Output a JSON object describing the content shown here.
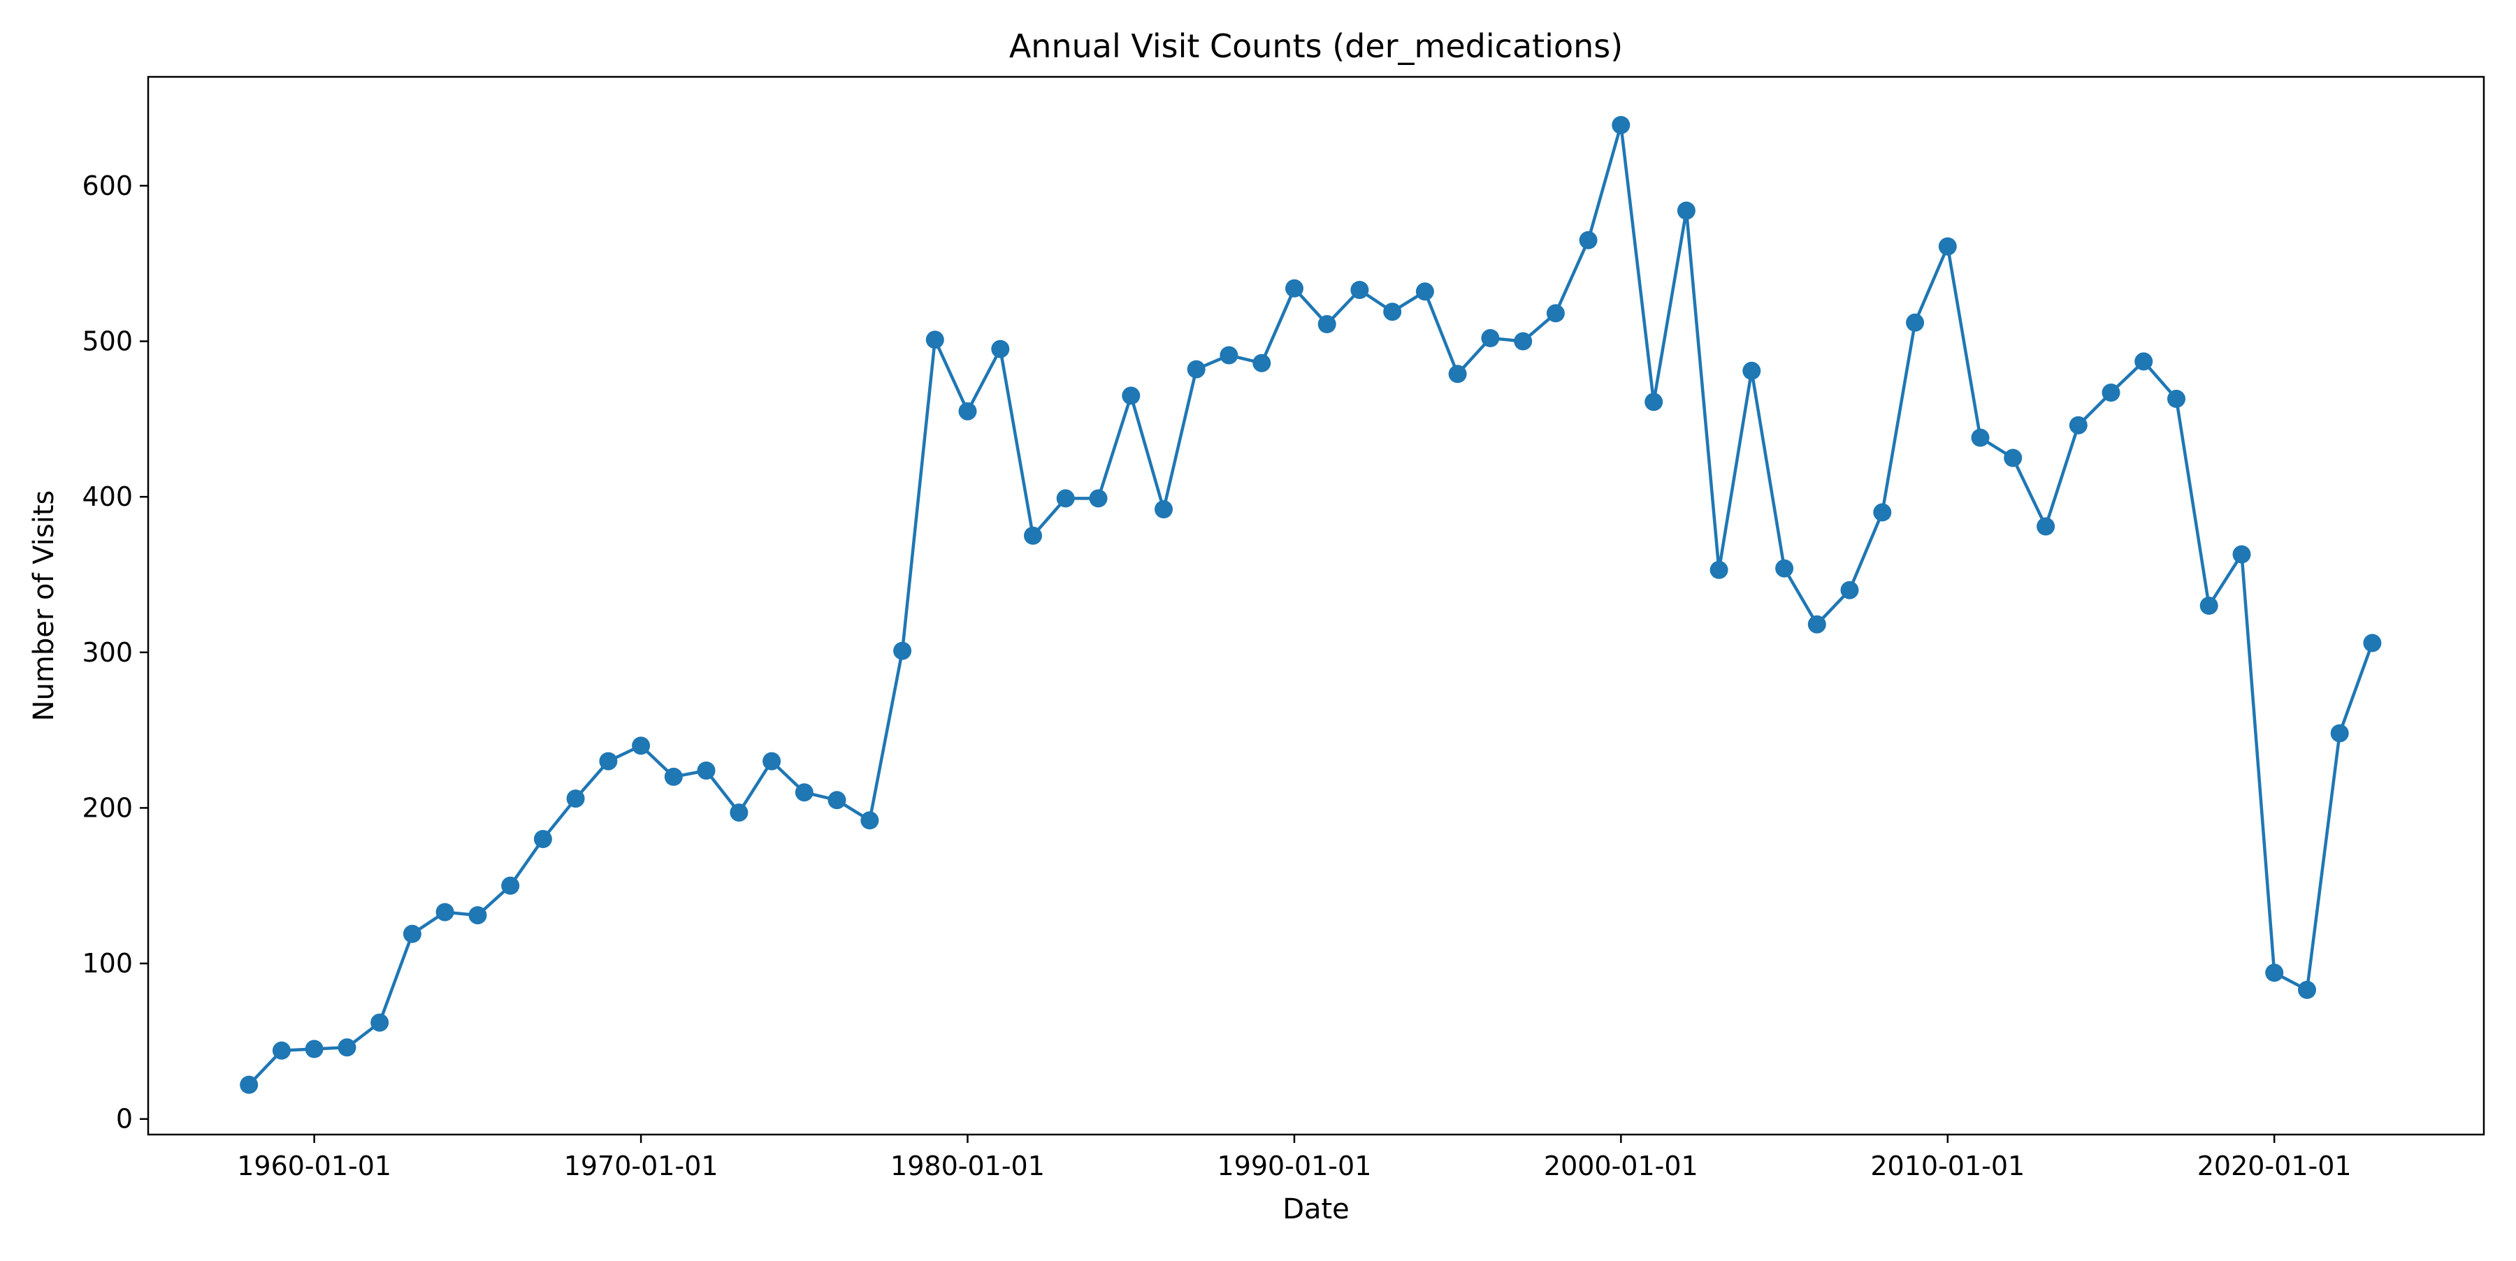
{
  "chart_data": {
    "type": "line",
    "title": "Annual Visit Counts (der_medications)",
    "xlabel": "Date",
    "ylabel": "Number of Visits",
    "x_tick_labels": [
      "1960-01-01",
      "1970-01-01",
      "1980-01-01",
      "1990-01-01",
      "2000-01-01",
      "2010-01-01",
      "2020-01-01"
    ],
    "y_tick_labels": [
      "0",
      "100",
      "200",
      "300",
      "400",
      "500",
      "600"
    ],
    "xlim": [
      "1954-12-01",
      "2026-06-01"
    ],
    "ylim": [
      -10,
      670
    ],
    "grid": false,
    "marker": "circle",
    "color": "#1f77b4",
    "series": [
      {
        "x": [
          "1958-01-01",
          "1959-01-01",
          "1960-01-01",
          "1961-01-01",
          "1962-01-01",
          "1963-01-01",
          "1964-01-01",
          "1965-01-01",
          "1966-01-01",
          "1967-01-01",
          "1968-01-01",
          "1969-01-01",
          "1970-01-01",
          "1971-01-01",
          "1972-01-01",
          "1973-01-01",
          "1974-01-01",
          "1975-01-01",
          "1976-01-01",
          "1977-01-01",
          "1978-01-01",
          "1979-01-01",
          "1980-01-01",
          "1981-01-01",
          "1982-01-01",
          "1983-01-01",
          "1984-01-01",
          "1985-01-01",
          "1986-01-01",
          "1987-01-01",
          "1988-01-01",
          "1989-01-01",
          "1990-01-01",
          "1991-01-01",
          "1992-01-01",
          "1993-01-01",
          "1994-01-01",
          "1995-01-01",
          "1996-01-01",
          "1997-01-01",
          "1998-01-01",
          "1999-01-01",
          "2000-01-01",
          "2001-01-01",
          "2002-01-01",
          "2003-01-01",
          "2004-01-01",
          "2005-01-01",
          "2006-01-01",
          "2007-01-01",
          "2008-01-01",
          "2009-01-01",
          "2010-01-01",
          "2011-01-01",
          "2012-01-01",
          "2013-01-01",
          "2014-01-01",
          "2015-01-01",
          "2016-01-01",
          "2017-01-01",
          "2018-01-01",
          "2019-01-01",
          "2020-01-01",
          "2021-01-01",
          "2022-01-01",
          "2023-01-01"
        ],
        "values": [
          22,
          44,
          45,
          46,
          62,
          119,
          133,
          131,
          150,
          180,
          206,
          230,
          240,
          220,
          224,
          197,
          230,
          210,
          205,
          192,
          301,
          501,
          455,
          495,
          375,
          399,
          399,
          465,
          392,
          482,
          491,
          486,
          534,
          511,
          533,
          519,
          532,
          479,
          502,
          500,
          518,
          565,
          639,
          461,
          584,
          353,
          481,
          354,
          318,
          340,
          390,
          512,
          561,
          438,
          425,
          381,
          446,
          467,
          487,
          463,
          330,
          363,
          94,
          83,
          248,
          306
        ]
      }
    ]
  }
}
